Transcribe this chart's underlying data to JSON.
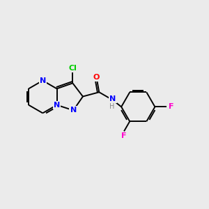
{
  "background_color": "#EBEBEB",
  "bond_color": "#000000",
  "atom_colors": {
    "N": "#0000FF",
    "O": "#FF0000",
    "Cl": "#00CC00",
    "F": "#FF00CC",
    "H": "#888888"
  },
  "figsize": [
    3.0,
    3.0
  ],
  "dpi": 100
}
